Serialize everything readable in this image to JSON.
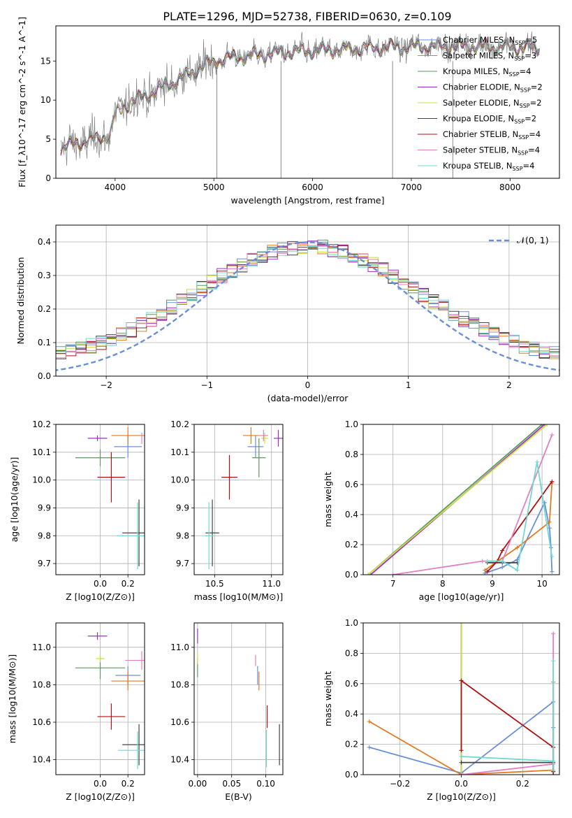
{
  "figure_title": "PLATE=1296, MJD=52738, FIBERID=0630, z=0.109",
  "model_colors": [
    "#6a8fd8",
    "#e07b24",
    "#5a9a5a",
    "#9b30c0",
    "#ccdd44",
    "#444444",
    "#b01010",
    "#e080c0",
    "#70d8d0"
  ],
  "chart_data": [
    {
      "type": "line",
      "title": "PLATE=1296, MJD=52738, FIBERID=0630, z=0.109",
      "xlabel": "wavelength [Angstrom, rest frame]",
      "ylabel": "Flux [f_λ10^-17 erg cm^-2 s^-1 A^-1]",
      "xlim": [
        3400,
        8500
      ],
      "ylim": [
        0,
        19.5
      ],
      "xticks": [
        4000,
        5000,
        6000,
        7000,
        8000
      ],
      "yticks": [
        0,
        5,
        10,
        15
      ],
      "legend_position": "upper-right",
      "continuum_x": [
        3450,
        3600,
        3800,
        3950,
        4000,
        4150,
        4300,
        4500,
        4700,
        4900,
        5100,
        5300,
        5500,
        5800,
        6100,
        6400,
        6800,
        7200,
        7600,
        8000,
        8300
      ],
      "continuum_y": [
        3.8,
        4.5,
        5.0,
        5.6,
        8.2,
        9.8,
        10.5,
        11.8,
        13.0,
        14.5,
        15.3,
        15.6,
        15.9,
        16.2,
        16.4,
        16.6,
        16.8,
        16.9,
        16.9,
        16.8,
        16.7
      ],
      "series": [
        {
          "name": "Chabrier MILES, N_SSP=5"
        },
        {
          "name": "Salpeter MILES, N_SSP=3"
        },
        {
          "name": "Kroupa MILES, N_SSP=4"
        },
        {
          "name": "Chabrier ELODIE, N_SSP=2"
        },
        {
          "name": "Salpeter ELODIE, N_SSP=2"
        },
        {
          "name": "Kroupa ELODIE, N_SSP=2"
        },
        {
          "name": "Chabrier STELIB, N_SSP=4"
        },
        {
          "name": "Salpeter STELIB, N_SSP=4"
        },
        {
          "name": "Kroupa STELIB, N_SSP=4"
        }
      ]
    },
    {
      "type": "bar",
      "xlabel": "(data-model)/error",
      "ylabel": "Normed distribution",
      "xlim": [
        -2.5,
        2.5
      ],
      "ylim": [
        0,
        0.45
      ],
      "xticks": [
        -2,
        -1,
        0,
        1,
        2
      ],
      "yticks": [
        0.0,
        0.1,
        0.2,
        0.3,
        0.4
      ],
      "grid": true,
      "bin_width": 0.1,
      "reference_curve": "N(0,1)",
      "legend_position": "upper-right"
    },
    {
      "type": "scatter",
      "xlabel": "Z [log10(Z/Z⊙)]",
      "ylabel": "age  [log10(age/yr)]",
      "xlim": [
        -0.32,
        0.32
      ],
      "ylim": [
        9.66,
        10.2
      ],
      "xticks": [
        0.0,
        0.2
      ],
      "yticks": [
        9.7,
        9.8,
        9.9,
        10.0,
        10.1,
        10.2
      ],
      "grid": true,
      "points": [
        {
          "x": 0.2,
          "y": 10.12,
          "xerr": 0.1,
          "yerr": 0.04
        },
        {
          "x": 0.2,
          "y": 10.16,
          "xerr": 0.12,
          "yerr": 0.03
        },
        {
          "x": 0.0,
          "y": 10.08,
          "xerr": 0.18,
          "yerr": 0.03
        },
        {
          "x": -0.02,
          "y": 10.15,
          "xerr": 0.07,
          "yerr": 0.01
        },
        {
          "x": 0.0,
          "y": 10.17,
          "xerr": 0.0,
          "yerr": 0.0
        },
        {
          "x": 0.28,
          "y": 9.81,
          "xerr": 0.12,
          "yerr": 0.12
        },
        {
          "x": 0.08,
          "y": 10.01,
          "xerr": 0.1,
          "yerr": 0.09
        },
        {
          "x": 0.3,
          "y": 10.15,
          "xerr": 0.0,
          "yerr": 0.02
        },
        {
          "x": 0.27,
          "y": 9.8,
          "xerr": 0.15,
          "yerr": 0.12
        }
      ]
    },
    {
      "type": "scatter",
      "xlabel": "mass [log10(M/M⊙)]",
      "ylabel": "",
      "xlim": [
        10.32,
        11.1
      ],
      "ylim": [
        9.66,
        10.2
      ],
      "xticks": [
        10.5,
        11.0
      ],
      "yticks": [
        9.7,
        9.8,
        9.9,
        10.0,
        10.1,
        10.2
      ],
      "grid": true,
      "points": [
        {
          "x": 10.86,
          "y": 10.12,
          "xerr": 0.07,
          "yerr": 0.04
        },
        {
          "x": 10.82,
          "y": 10.16,
          "xerr": 0.07,
          "yerr": 0.03
        },
        {
          "x": 10.89,
          "y": 10.08,
          "xerr": 0.06,
          "yerr": 0.07
        },
        {
          "x": 11.06,
          "y": 10.15,
          "xerr": 0.04,
          "yerr": 0.03
        },
        {
          "x": 10.94,
          "y": 10.15,
          "xerr": 0.03,
          "yerr": 0.02
        },
        {
          "x": 10.48,
          "y": 9.81,
          "xerr": 0.06,
          "yerr": 0.12
        },
        {
          "x": 10.63,
          "y": 10.01,
          "xerr": 0.07,
          "yerr": 0.08
        },
        {
          "x": 10.93,
          "y": 10.16,
          "xerr": 0.04,
          "yerr": 0.02
        },
        {
          "x": 10.45,
          "y": 9.8,
          "xerr": 0.04,
          "yerr": 0.12
        }
      ]
    },
    {
      "type": "line",
      "xlabel": "age  [log10(age/yr)]",
      "ylabel": "mass weight",
      "xlim": [
        6.4,
        10.35
      ],
      "ylim": [
        0,
        1
      ],
      "xticks": [
        7,
        8,
        9,
        10
      ],
      "yticks": [
        0.0,
        0.2,
        0.4,
        0.6,
        0.8,
        1.0
      ],
      "grid": true,
      "series": [
        {
          "x": [
            8.85,
            9.2,
            9.5,
            10.05,
            10.15,
            10.18,
            10.2
          ],
          "y": [
            0.01,
            0.05,
            0.1,
            0.48,
            0.31,
            0.18,
            0.02
          ]
        },
        {
          "x": [
            8.85,
            9.5,
            10.15,
            10.2
          ],
          "y": [
            0.03,
            0.18,
            0.35,
            0.61
          ]
        },
        {
          "x": [
            6.5,
            10.0
          ],
          "y": [
            0.0,
            1.0
          ]
        },
        {
          "x": [
            6.55,
            10.05
          ],
          "y": [
            0.0,
            1.0
          ]
        },
        {
          "x": [
            6.5,
            10.1
          ],
          "y": [
            0.0,
            1.0
          ]
        },
        {
          "x": [
            8.9,
            9.2,
            9.5
          ],
          "y": [
            0.08,
            0.08,
            0.08
          ]
        },
        {
          "x": [
            8.9,
            9.1,
            9.2,
            10.2
          ],
          "y": [
            0.02,
            0.09,
            0.16,
            0.62
          ]
        },
        {
          "x": [
            7.0,
            8.8,
            9.2,
            10.2
          ],
          "y": [
            0.0,
            0.09,
            0.09,
            0.93
          ]
        },
        {
          "x": [
            8.9,
            9.2,
            9.5,
            9.9,
            10.2
          ],
          "y": [
            0.09,
            0.09,
            0.03,
            0.75,
            0.12
          ]
        }
      ]
    },
    {
      "type": "scatter",
      "xlabel": "Z [log10(Z/Z⊙)]",
      "ylabel": "mass [log10(M/M⊙)]",
      "xlim": [
        -0.32,
        0.32
      ],
      "ylim": [
        10.32,
        11.13
      ],
      "xticks": [
        0.0,
        0.2
      ],
      "yticks": [
        10.4,
        10.6,
        10.8,
        11.0
      ],
      "grid": true,
      "points": [
        {
          "x": 0.2,
          "y": 10.85,
          "xerr": 0.09,
          "yerr": 0.05
        },
        {
          "x": 0.2,
          "y": 10.82,
          "xerr": 0.12,
          "yerr": 0.05
        },
        {
          "x": 0.0,
          "y": 10.89,
          "xerr": 0.18,
          "yerr": 0.06
        },
        {
          "x": -0.02,
          "y": 11.06,
          "xerr": 0.07,
          "yerr": 0.02
        },
        {
          "x": 0.0,
          "y": 10.94,
          "xerr": 0.03,
          "yerr": 0.02
        },
        {
          "x": 0.28,
          "y": 10.48,
          "xerr": 0.12,
          "yerr": 0.11
        },
        {
          "x": 0.08,
          "y": 10.63,
          "xerr": 0.1,
          "yerr": 0.07
        },
        {
          "x": 0.3,
          "y": 10.93,
          "xerr": 0.12,
          "yerr": 0.05
        },
        {
          "x": 0.27,
          "y": 10.45,
          "xerr": 0.14,
          "yerr": 0.1
        }
      ]
    },
    {
      "type": "scatter",
      "xlabel": "E(B-V)",
      "ylabel": "",
      "xlim": [
        -0.005,
        0.125
      ],
      "ylim": [
        10.32,
        11.13
      ],
      "xticks": [
        0.0,
        0.05,
        0.1
      ],
      "yticks": [
        10.4,
        10.6,
        10.8,
        11.0
      ],
      "grid": true,
      "points": [
        {
          "x": 0.088,
          "y": 10.85,
          "xerr": 0.0,
          "yerr": 0.05
        },
        {
          "x": 0.09,
          "y": 10.82,
          "xerr": 0.0,
          "yerr": 0.05
        },
        {
          "x": 0.0,
          "y": 10.89,
          "xerr": 0.0,
          "yerr": 0.05
        },
        {
          "x": 0.0,
          "y": 11.06,
          "xerr": 0.0,
          "yerr": 0.04
        },
        {
          "x": 0.0,
          "y": 10.94,
          "xerr": 0.0,
          "yerr": 0.03
        },
        {
          "x": 0.12,
          "y": 10.48,
          "xerr": 0.0,
          "yerr": 0.11
        },
        {
          "x": 0.102,
          "y": 10.63,
          "xerr": 0.0,
          "yerr": 0.06
        },
        {
          "x": 0.085,
          "y": 10.93,
          "xerr": 0.0,
          "yerr": 0.03
        },
        {
          "x": 0.101,
          "y": 10.46,
          "xerr": 0.0,
          "yerr": 0.1
        }
      ]
    },
    {
      "type": "line",
      "xlabel": "Z [log10(Z/Z⊙)]",
      "ylabel": "mass weight",
      "xlim": [
        -0.32,
        0.32
      ],
      "ylim": [
        0,
        1
      ],
      "xticks": [
        -0.2,
        0.0,
        0.2
      ],
      "yticks": [
        0.0,
        0.2,
        0.4,
        0.6,
        0.8,
        1.0
      ],
      "grid": true,
      "series": [
        {
          "x": [
            -0.3,
            0.0,
            0.3,
            0.3,
            0.3,
            0.3
          ],
          "y": [
            0.18,
            0.01,
            0.48,
            0.31,
            0.18,
            0.02
          ]
        },
        {
          "x": [
            -0.3,
            0.0,
            0.3,
            0.3
          ],
          "y": [
            0.35,
            0.0,
            0.03,
            0.61
          ]
        },
        {
          "x": [
            0.0,
            0.0
          ],
          "y": [
            0.0,
            1.0
          ]
        },
        {
          "x": [
            0.0,
            0.0
          ],
          "y": [
            0.0,
            1.0
          ]
        },
        {
          "x": [
            0.0,
            0.0
          ],
          "y": [
            0.0,
            1.0
          ]
        },
        {
          "x": [
            0.0,
            0.3,
            0.3
          ],
          "y": [
            0.08,
            0.08,
            0.0
          ]
        },
        {
          "x": [
            0.0,
            0.0,
            0.3,
            0.3
          ],
          "y": [
            0.16,
            0.62,
            0.18,
            0.02
          ]
        },
        {
          "x": [
            0.0,
            0.3,
            0.3
          ],
          "y": [
            0.0,
            0.07,
            0.93
          ]
        },
        {
          "x": [
            0.0,
            0.3,
            0.3,
            0.3
          ],
          "y": [
            0.12,
            0.09,
            0.75,
            0.03
          ]
        }
      ]
    }
  ]
}
